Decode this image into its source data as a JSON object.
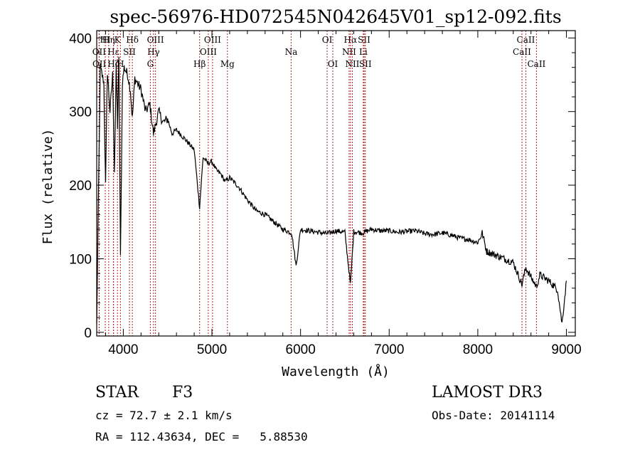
{
  "chart_data": {
    "type": "line",
    "title": "spec-56976-HD072545N042645V01_sp12-092.fits",
    "xlabel": "Wavelength (Å)",
    "ylabel": "Flux (relative)",
    "xlim": [
      3700,
      9100
    ],
    "ylim": [
      -5,
      410
    ],
    "x_ticks": [
      4000,
      5000,
      6000,
      7000,
      8000,
      9000
    ],
    "y_ticks": [
      0,
      100,
      200,
      300,
      400
    ],
    "series": [
      {
        "name": "flux",
        "x": [
          3700,
          3740,
          3780,
          3800,
          3820,
          3850,
          3880,
          3900,
          3920,
          3935,
          3950,
          3968,
          3990,
          4010,
          4050,
          4080,
          4102,
          4130,
          4200,
          4250,
          4300,
          4340,
          4400,
          4450,
          4500,
          4550,
          4600,
          4700,
          4800,
          4861,
          4900,
          4950,
          5000,
          5050,
          5100,
          5150,
          5200,
          5300,
          5400,
          5500,
          5600,
          5700,
          5800,
          5900,
          5950,
          6000,
          6100,
          6200,
          6300,
          6400,
          6500,
          6563,
          6600,
          6700,
          6800,
          6900,
          7000,
          7100,
          7200,
          7300,
          7400,
          7500,
          7600,
          7700,
          7800,
          7900,
          8000,
          8050,
          8100,
          8200,
          8300,
          8400,
          8498,
          8542,
          8600,
          8662,
          8700,
          8800,
          8900,
          8950,
          9000
        ],
        "values": [
          10,
          360,
          340,
          200,
          355,
          300,
          350,
          220,
          360,
          280,
          370,
          100,
          340,
          360,
          350,
          330,
          290,
          345,
          330,
          300,
          310,
          270,
          300,
          285,
          290,
          270,
          275,
          262,
          248,
          170,
          238,
          230,
          232,
          220,
          215,
          205,
          210,
          198,
          180,
          165,
          160,
          150,
          140,
          135,
          90,
          140,
          138,
          136,
          134,
          138,
          136,
          65,
          137,
          135,
          140,
          138,
          138,
          136,
          137,
          138,
          134,
          133,
          135,
          132,
          128,
          126,
          122,
          135,
          110,
          105,
          100,
          95,
          65,
          88,
          75,
          62,
          78,
          70,
          58,
          12,
          70
        ]
      }
    ],
    "spectral_lines": [
      {
        "label": "HI",
        "wl": 3797,
        "row": 0
      },
      {
        "label": "OII",
        "wl": 3727,
        "row": 1
      },
      {
        "label": "OII",
        "wl": 3729,
        "row": 2
      },
      {
        "label": "Hη",
        "wl": 3835,
        "row": 0
      },
      {
        "label": "Hε",
        "wl": 3889,
        "row": 1
      },
      {
        "label": "Hζ",
        "wl": 3890,
        "row": 2
      },
      {
        "label": "K",
        "wl": 3934,
        "row": 0
      },
      {
        "label": "H",
        "wl": 3968,
        "row": 2
      },
      {
        "label": "Hδ",
        "wl": 4102,
        "row": 0
      },
      {
        "label": "SII",
        "wl": 4069,
        "row": 1
      },
      {
        "label": "OIII",
        "wl": 4363,
        "row": 0
      },
      {
        "label": "Hγ",
        "wl": 4341,
        "row": 1
      },
      {
        "label": "G",
        "wl": 4305,
        "row": 2
      },
      {
        "label": "Hβ",
        "wl": 4861,
        "row": 2
      },
      {
        "label": "OIII",
        "wl": 5007,
        "row": 0
      },
      {
        "label": "OIII",
        "wl": 4959,
        "row": 1
      },
      {
        "label": "Mg",
        "wl": 5175,
        "row": 2
      },
      {
        "label": "Na",
        "wl": 5894,
        "row": 1
      },
      {
        "label": "OI",
        "wl": 6300,
        "row": 0
      },
      {
        "label": "OI",
        "wl": 6364,
        "row": 2
      },
      {
        "label": "Hα",
        "wl": 6563,
        "row": 0
      },
      {
        "label": "NII",
        "wl": 6548,
        "row": 1
      },
      {
        "label": "NII",
        "wl": 6584,
        "row": 2
      },
      {
        "label": "SII",
        "wl": 6717,
        "row": 0
      },
      {
        "label": "Li",
        "wl": 6708,
        "row": 1
      },
      {
        "label": "SII",
        "wl": 6731,
        "row": 2
      },
      {
        "label": "CaII",
        "wl": 8542,
        "row": 0
      },
      {
        "label": "CaII",
        "wl": 8498,
        "row": 1
      },
      {
        "label": "CaII",
        "wl": 8662,
        "row": 2
      }
    ]
  },
  "info": {
    "class": "STAR",
    "subclass": "F3",
    "survey": "LAMOST DR3",
    "cz": "cz = 72.7 ± 2.1 km/s",
    "obs_date": "Obs-Date: 20141114",
    "radec": "RA = 112.43634, DEC =   5.88530"
  },
  "colors": {
    "line_marker": "#b22222",
    "spectrum": "#000000"
  }
}
